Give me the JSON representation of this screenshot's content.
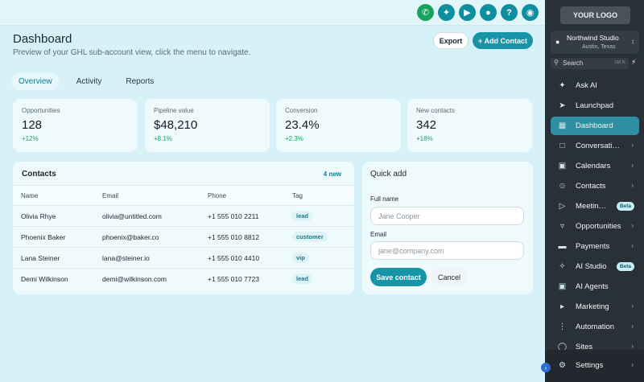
{
  "header": {
    "title": "Dashboard",
    "subtitle": "Preview of your GHL sub-account view, click the menu to navigate.",
    "export_label": "Export",
    "add_contact_label": "+ Add Contact",
    "icons": [
      "phone-icon",
      "magic-wand-icon",
      "megaphone-icon",
      "bell-icon",
      "help-icon",
      "eye-icon"
    ]
  },
  "tabs": [
    {
      "label": "Overview",
      "active": true
    },
    {
      "label": "Activity",
      "active": false
    },
    {
      "label": "Reports",
      "active": false
    }
  ],
  "stats": [
    {
      "label": "Opportunities",
      "value": "128",
      "delta": "+12%"
    },
    {
      "label": "Pipeline value",
      "value": "$48,210",
      "delta": "+8.1%"
    },
    {
      "label": "Conversion",
      "value": "23.4%",
      "delta": "+2.3%"
    },
    {
      "label": "New contacts",
      "value": "342",
      "delta": "+18%"
    }
  ],
  "contacts": {
    "title": "Contacts",
    "meta": "4 new",
    "columns": [
      "Name",
      "Email",
      "Phone",
      "Tag"
    ],
    "rows": [
      {
        "name": "Olivia Rhye",
        "email": "olivia@untitled.com",
        "phone": "+1 555 010 2211",
        "tag": "lead"
      },
      {
        "name": "Phoenix Baker",
        "email": "phoenix@baker.co",
        "phone": "+1 555 010 8812",
        "tag": "customer"
      },
      {
        "name": "Lana Steiner",
        "email": "lana@steiner.io",
        "phone": "+1 555 010 4410",
        "tag": "vip"
      },
      {
        "name": "Demi Wilkinson",
        "email": "demi@wilkinson.com",
        "phone": "+1 555 010 7723",
        "tag": "lead"
      }
    ]
  },
  "quick_add": {
    "title": "Quick add",
    "full_name_label": "Full name",
    "full_name_placeholder": "Jane Cooper",
    "email_label": "Email",
    "email_placeholder": "jane@company.com",
    "save_label": "Save contact",
    "cancel_label": "Cancel"
  },
  "sidebar": {
    "logo": "YOUR LOGO",
    "account_name": "Northwind Studio",
    "account_location": "Austin, Texas",
    "search_label": "Search",
    "search_shortcut": "ctrl K",
    "items": [
      {
        "label": "Ask AI",
        "icon": "sparkle-icon"
      },
      {
        "label": "Launchpad",
        "icon": "rocket-icon"
      },
      {
        "label": "Dashboard",
        "icon": "grid-icon",
        "active": true
      },
      {
        "label": "Conversations",
        "icon": "chat-icon",
        "chevron": true
      },
      {
        "label": "Calendars",
        "icon": "calendar-icon",
        "chevron": true
      },
      {
        "label": "Contacts",
        "icon": "contacts-icon",
        "chevron": true
      },
      {
        "label": "Meeting AI",
        "icon": "video-icon",
        "badge": "Beta"
      },
      {
        "label": "Opportunities",
        "icon": "funnel-icon",
        "chevron": true
      },
      {
        "label": "Payments",
        "icon": "card-icon",
        "chevron": true
      },
      {
        "label": "AI Studio",
        "icon": "wand-icon",
        "badge": "Beta"
      },
      {
        "label": "AI Agents",
        "icon": "robot-icon"
      },
      {
        "label": "Marketing",
        "icon": "megaphone-icon",
        "chevron": true
      },
      {
        "label": "Automation",
        "icon": "workflow-icon",
        "chevron": true
      },
      {
        "label": "Sites",
        "icon": "globe-icon",
        "chevron": true
      }
    ],
    "settings_label": "Settings"
  }
}
